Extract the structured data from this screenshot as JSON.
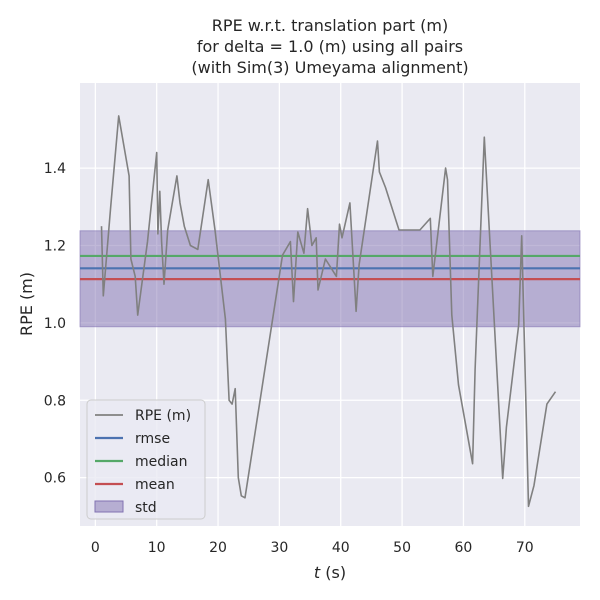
{
  "chart_data": {
    "type": "line",
    "title": [
      "RPE w.r.t. translation part (m)",
      "for delta = 1.0 (m) using all pairs",
      "(with Sim(3) Umeyama alignment)"
    ],
    "xlabel_var": "t",
    "xlabel_unit": " (s)",
    "ylabel": "RPE (m)",
    "xlim": [
      -2.5,
      79
    ],
    "ylim": [
      0.475,
      1.62
    ],
    "xticks": [
      0,
      10,
      20,
      30,
      40,
      50,
      60,
      70
    ],
    "xtick_labels": [
      "0",
      "10",
      "20",
      "30",
      "40",
      "50",
      "60",
      "70"
    ],
    "yticks": [
      0.6,
      0.8,
      1.0,
      1.2,
      1.4
    ],
    "ytick_labels": [
      "0.6",
      "0.8",
      "1.0",
      "1.2",
      "1.4"
    ],
    "grid": true,
    "legend_position": "lower-left",
    "series": [
      {
        "name": "RPE (m)",
        "color": "#808080",
        "x": [
          1.0,
          1.3,
          2.5,
          3.8,
          5.5,
          5.8,
          6.5,
          6.9,
          8.5,
          10.0,
          10.2,
          10.5,
          10.8,
          11.2,
          11.8,
          13.3,
          13.8,
          14.5,
          15.5,
          16.7,
          18.4,
          19.5,
          21.2,
          21.8,
          22.3,
          22.8,
          23.3,
          23.8,
          24.4,
          30.5,
          31.8,
          32.3,
          33.0,
          34.0,
          34.6,
          35.3,
          36.0,
          36.3,
          37.5,
          39.3,
          39.8,
          40.2,
          41.5,
          42.5,
          43.0,
          46.0,
          46.3,
          47.3,
          49.5,
          52.9,
          54.6,
          55.0,
          57.1,
          57.4,
          58.1,
          59.2,
          61.5,
          61.9,
          63.4,
          66.4,
          66.7,
          67.0,
          69.0,
          69.5,
          70.6,
          71.5,
          73.6,
          75.0
        ],
        "y": [
          1.25,
          1.07,
          1.3,
          1.535,
          1.38,
          1.165,
          1.12,
          1.02,
          1.21,
          1.44,
          1.23,
          1.34,
          1.21,
          1.1,
          1.24,
          1.38,
          1.31,
          1.25,
          1.2,
          1.19,
          1.37,
          1.24,
          1.01,
          0.8,
          0.79,
          0.83,
          0.6,
          0.553,
          0.548,
          1.175,
          1.21,
          1.055,
          1.235,
          1.18,
          1.295,
          1.2,
          1.22,
          1.085,
          1.165,
          1.12,
          1.255,
          1.22,
          1.31,
          1.03,
          1.15,
          1.47,
          1.39,
          1.35,
          1.24,
          1.24,
          1.27,
          1.12,
          1.4,
          1.37,
          1.02,
          0.84,
          0.636,
          0.88,
          1.48,
          0.598,
          0.66,
          0.73,
          0.995,
          1.225,
          0.526,
          0.58,
          0.79,
          0.822
        ]
      },
      {
        "name": "rmse",
        "color": "#4c72b0",
        "value": 1.141
      },
      {
        "name": "median",
        "color": "#55a868",
        "value": 1.173
      },
      {
        "name": "mean",
        "color": "#c44e52",
        "value": 1.113
      }
    ],
    "std_band": {
      "name": "std",
      "color": "#8172b2",
      "lower": 0.99,
      "upper": 1.238
    },
    "legend": [
      "RPE (m)",
      "rmse",
      "median",
      "mean",
      "std"
    ]
  }
}
